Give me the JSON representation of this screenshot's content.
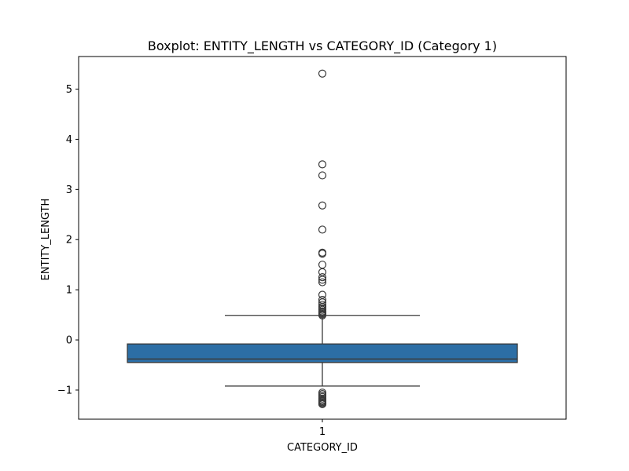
{
  "chart_data": {
    "type": "boxplot",
    "title": "Boxplot: ENTITY_LENGTH vs CATEGORY_ID (Category 1)",
    "xlabel": "CATEGORY_ID",
    "ylabel": "ENTITY_LENGTH",
    "categories": [
      "1"
    ],
    "ylim": [
      -1.58,
      5.65
    ],
    "yticks": [
      -1,
      0,
      1,
      2,
      3,
      4,
      5
    ],
    "ytick_labels": [
      "−1",
      "0",
      "1",
      "2",
      "3",
      "4",
      "5"
    ],
    "grid": false,
    "box_color": "#2c6ea5",
    "line_color": "#3a3a3a",
    "boxes": [
      {
        "category": "1",
        "whisker_low": -0.92,
        "q1": -0.45,
        "median": -0.38,
        "q3": -0.08,
        "whisker_high": 0.49,
        "outliers_high": [
          0.49,
          0.51,
          0.53,
          0.55,
          0.57,
          0.6,
          0.63,
          0.66,
          0.7,
          0.75,
          0.8,
          0.9,
          1.15,
          1.2,
          1.25,
          1.35,
          1.5,
          1.72,
          1.74,
          2.2,
          2.68,
          3.28,
          3.5,
          5.31
        ],
        "outliers_low": [
          -1.05,
          -1.08,
          -1.11,
          -1.14,
          -1.17,
          -1.2,
          -1.22,
          -1.24,
          -1.26,
          -1.27,
          -1.28
        ]
      }
    ]
  }
}
